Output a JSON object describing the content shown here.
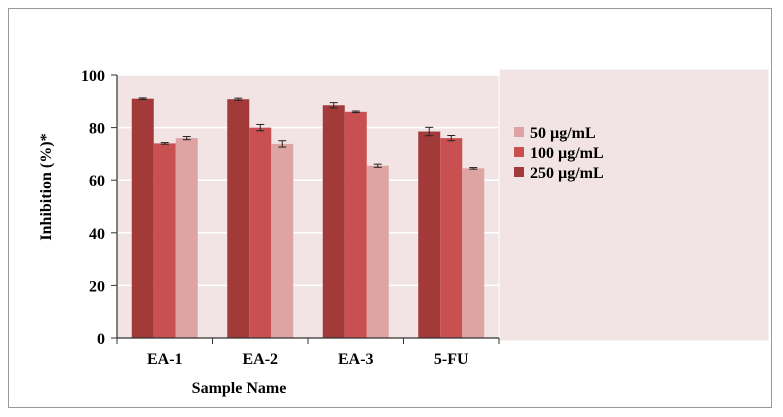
{
  "chart_data": {
    "type": "bar",
    "categories": [
      "EA-1",
      "EA-2",
      "EA-3",
      "5-FU"
    ],
    "series": [
      {
        "name": "250 µg/mL",
        "values": [
          91,
          90.8,
          88.5,
          78.5
        ],
        "errors": [
          0.3,
          0.4,
          1.0,
          1.6
        ],
        "color": "#a33a3a"
      },
      {
        "name": "100 µg/mL",
        "values": [
          74,
          80,
          86,
          76
        ],
        "errors": [
          0.3,
          1.2,
          0.3,
          1.0
        ],
        "color": "#c95050"
      },
      {
        "name": "50 µg/mL",
        "values": [
          76,
          73.8,
          65.5,
          64.5
        ],
        "errors": [
          0.6,
          1.2,
          0.6,
          0.3
        ],
        "color": "#dea3a3"
      }
    ],
    "legend": [
      {
        "label": "50 µg/mL",
        "color": "#dea3a3"
      },
      {
        "label": "100 µg/mL",
        "color": "#c95050"
      },
      {
        "label": "250 µg/mL",
        "color": "#a33a3a"
      }
    ],
    "legend_position": "right",
    "xlabel": "Sample Name",
    "ylabel": "Inhibition (%)*",
    "ylim": [
      0,
      100
    ],
    "yticks": [
      0,
      20,
      40,
      60,
      80,
      100
    ],
    "grid": true,
    "plot_background": "#f2e4e4",
    "gridline_color": "#ffffff"
  }
}
